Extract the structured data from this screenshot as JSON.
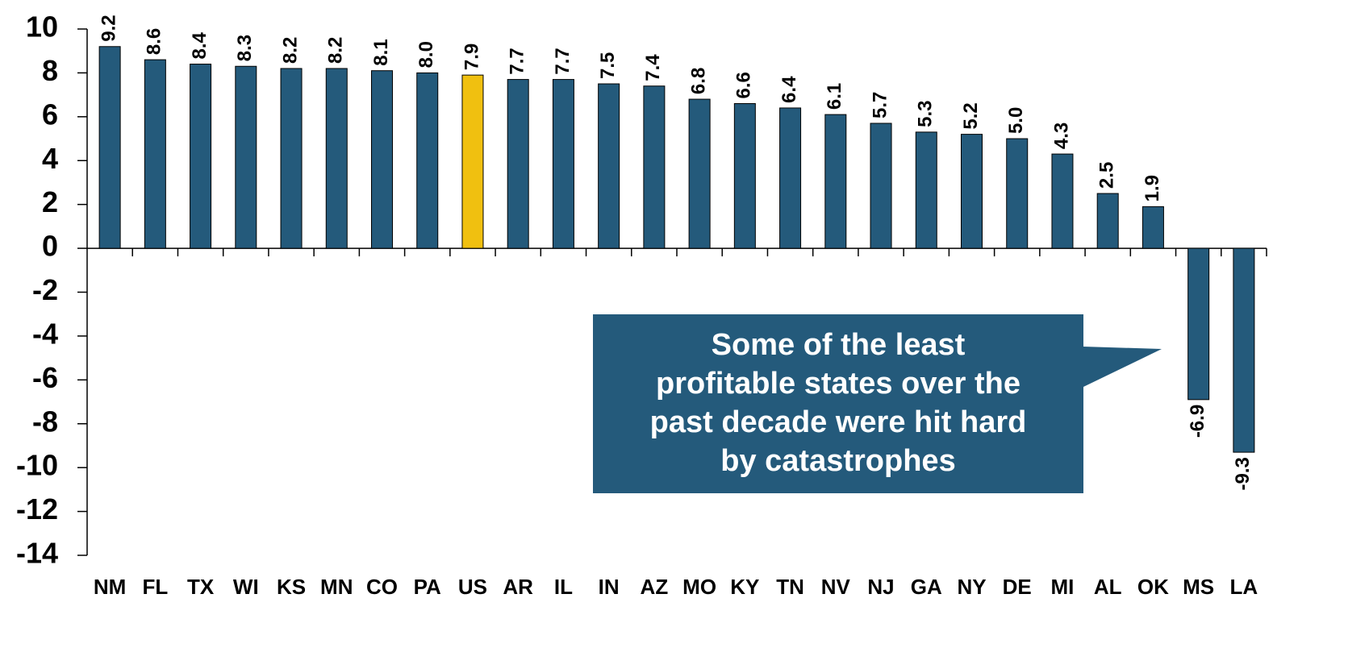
{
  "chart_data": {
    "type": "bar",
    "categories": [
      "NM",
      "FL",
      "TX",
      "WI",
      "KS",
      "MN",
      "CO",
      "PA",
      "US",
      "AR",
      "IL",
      "IN",
      "AZ",
      "MO",
      "KY",
      "TN",
      "NV",
      "NJ",
      "GA",
      "NY",
      "DE",
      "MI",
      "AL",
      "OK",
      "MS",
      "LA"
    ],
    "values": [
      9.2,
      8.6,
      8.4,
      8.3,
      8.2,
      8.2,
      8.1,
      8.0,
      7.9,
      7.7,
      7.7,
      7.5,
      7.4,
      6.8,
      6.6,
      6.4,
      6.1,
      5.7,
      5.3,
      5.2,
      5.0,
      4.3,
      2.5,
      1.9,
      -6.9,
      -9.3
    ],
    "value_labels": [
      "9.2",
      "8.6",
      "8.4",
      "8.3",
      "8.2",
      "8.2",
      "8.1",
      "8.0",
      "7.9",
      "7.7",
      "7.7",
      "7.5",
      "7.4",
      "6.8",
      "6.6",
      "6.4",
      "6.1",
      "5.7",
      "5.3",
      "5.2",
      "5.0",
      "4.3",
      "2.5",
      "1.9",
      "-6.9",
      "-9.3"
    ],
    "colors": [
      "#245a7b",
      "#245a7b",
      "#245a7b",
      "#245a7b",
      "#245a7b",
      "#245a7b",
      "#245a7b",
      "#245a7b",
      "#f0c010",
      "#245a7b",
      "#245a7b",
      "#245a7b",
      "#245a7b",
      "#245a7b",
      "#245a7b",
      "#245a7b",
      "#245a7b",
      "#245a7b",
      "#245a7b",
      "#245a7b",
      "#245a7b",
      "#245a7b",
      "#245a7b",
      "#245a7b",
      "#245a7b",
      "#245a7b"
    ],
    "ylim": [
      -14,
      10
    ],
    "yticks": [
      -14,
      -12,
      -10,
      -8,
      -6,
      -4,
      -2,
      0,
      2,
      4,
      6,
      8,
      10
    ],
    "annotation": [
      "Some of the least",
      "profitable states over the",
      "past decade were hit hard",
      "by catastrophes"
    ],
    "annotation_color": "#245a7b"
  }
}
